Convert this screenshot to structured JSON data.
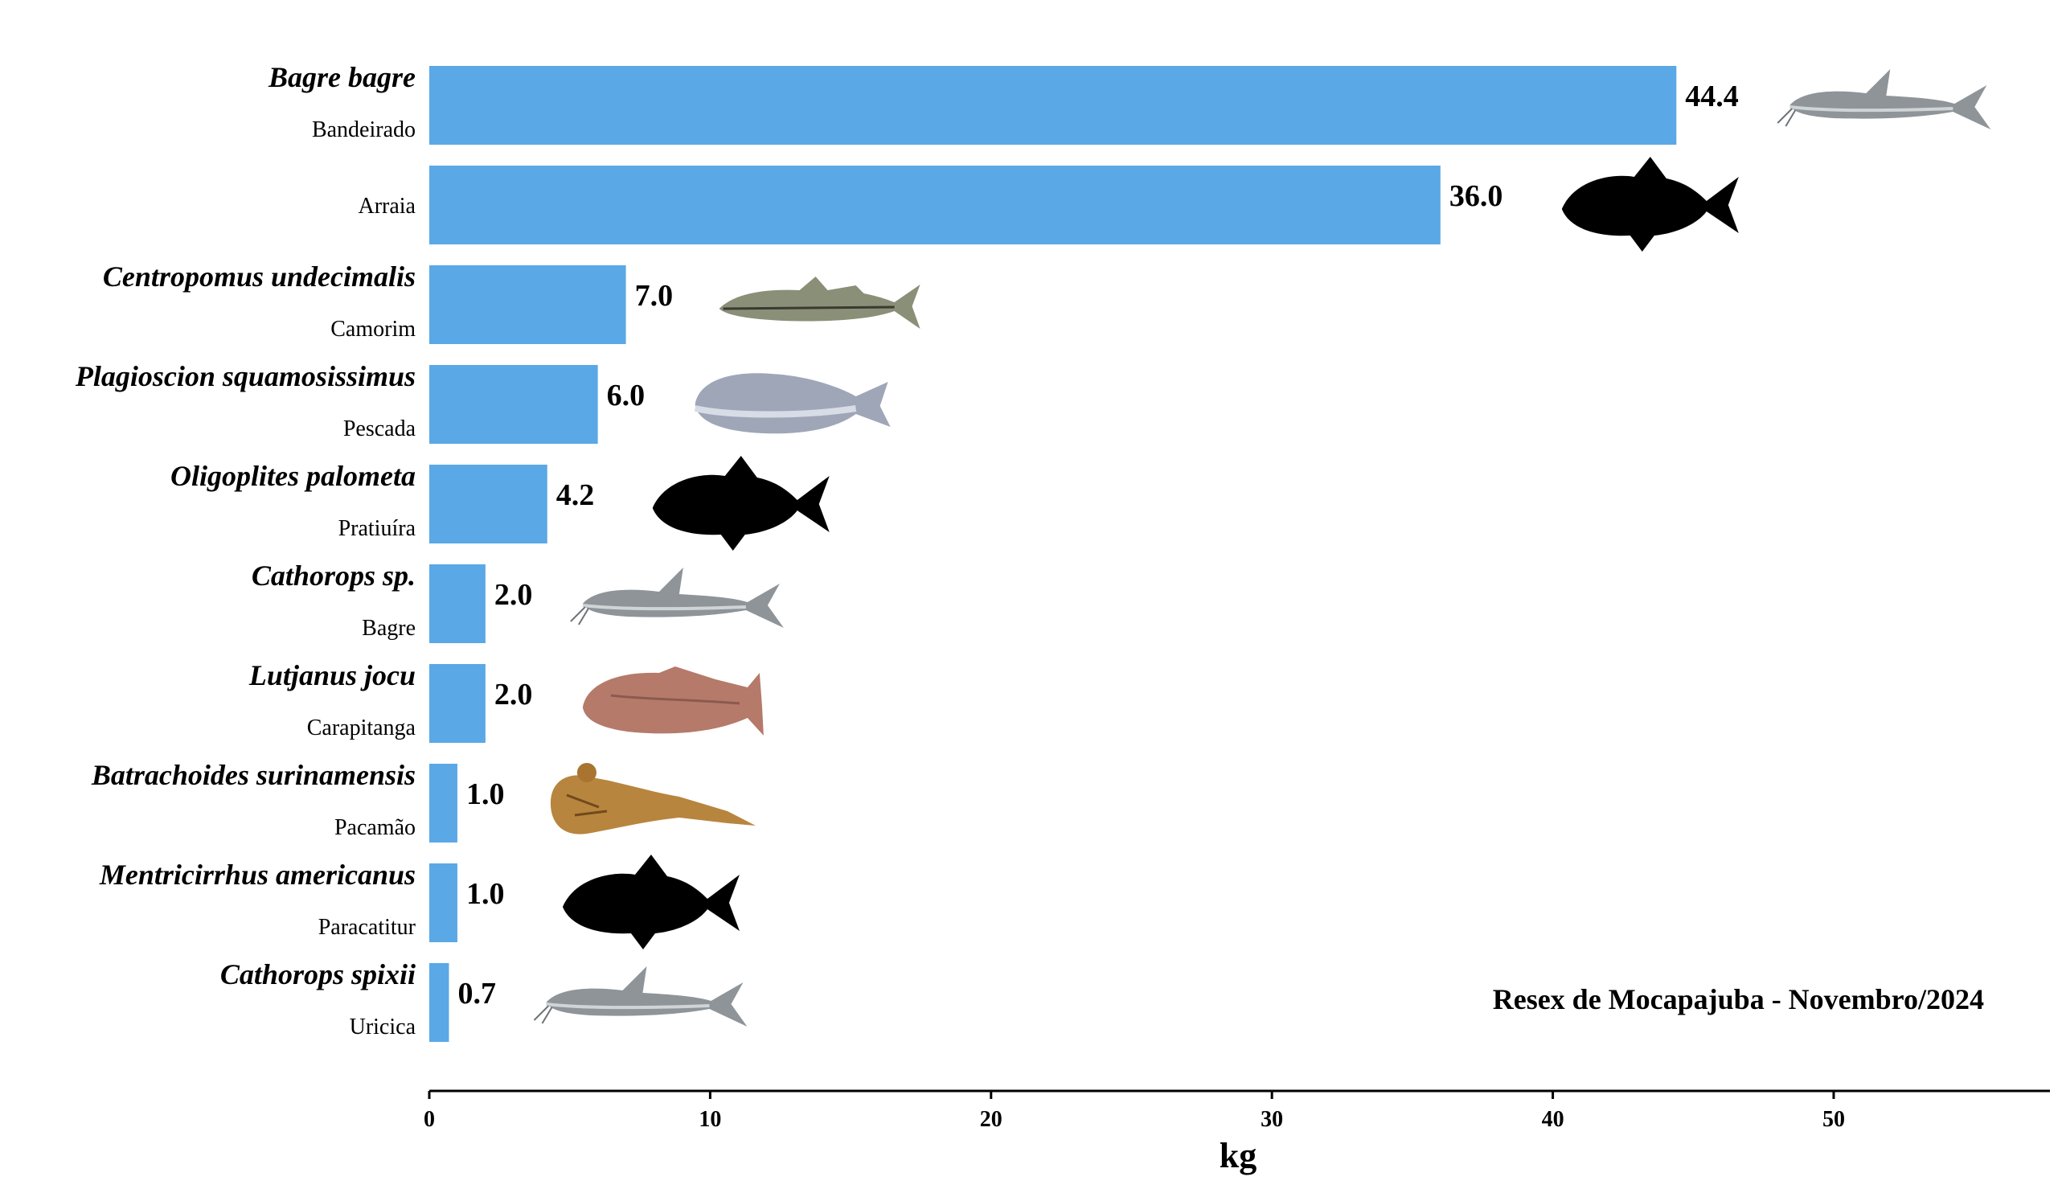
{
  "chart_data": {
    "type": "bar",
    "orientation": "horizontal",
    "categories": [
      {
        "scientific": "Bagre bagre",
        "common": "Bandeirado",
        "icon": "catfish-photo-icon"
      },
      {
        "scientific": "",
        "common": "Arraia",
        "icon": "fish-silhouette-icon"
      },
      {
        "scientific": "Centropomus undecimalis",
        "common": "Camorim",
        "icon": "snook-photo-icon"
      },
      {
        "scientific": "Plagioscion squamosissimus",
        "common": "Pescada",
        "icon": "croaker-photo-icon"
      },
      {
        "scientific": "Oligoplites palometa",
        "common": "Pratiuíra",
        "icon": "fish-silhouette-icon"
      },
      {
        "scientific": "Cathorops sp.",
        "common": "Bagre",
        "icon": "catfish-photo-icon"
      },
      {
        "scientific": "Lutjanus jocu",
        "common": "Carapitanga",
        "icon": "snapper-photo-icon"
      },
      {
        "scientific": "Batrachoides surinamensis",
        "common": "Pacamão",
        "icon": "toadfish-photo-icon"
      },
      {
        "scientific": "Mentricirrhus americanus",
        "common": "Paracatitur",
        "icon": "fish-silhouette-icon"
      },
      {
        "scientific": "Cathorops spixii",
        "common": "Uricica",
        "icon": "catfish-photo-icon"
      }
    ],
    "values": [
      44.4,
      36.0,
      7.0,
      6.0,
      4.2,
      2.0,
      2.0,
      1.0,
      1.0,
      0.7
    ],
    "value_labels": [
      "44.4",
      "36.0",
      "7.0",
      "6.0",
      "4.2",
      "2.0",
      "2.0",
      "1.0",
      "1.0",
      "0.7"
    ],
    "xlabel": "kg",
    "xlim": [
      0,
      57.7
    ],
    "xticks": [
      0,
      10,
      20,
      30,
      40,
      50
    ],
    "annotation": "Resex de Mocapajuba - Novembro/2024",
    "bar_color": "#5aa8e6",
    "grid": false
  }
}
